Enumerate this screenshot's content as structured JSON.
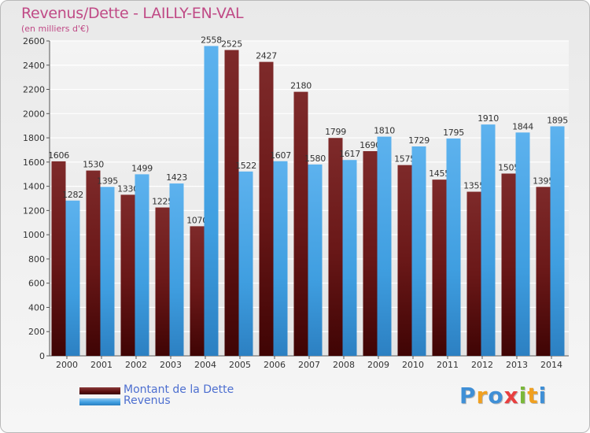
{
  "title": "Revenus/Dette - LAILLY-EN-VAL",
  "subtitle": "(en milliers d'€)",
  "logo": {
    "text": "Proxiti",
    "letters": [
      "P",
      "r",
      "o",
      "x",
      "i",
      "t",
      "i"
    ],
    "colors": [
      "#3f8fd6",
      "#f0a020",
      "#3f8fd6",
      "#e83f3f",
      "#7ab83a",
      "#f0a020",
      "#3f8fd6"
    ]
  },
  "colors": {
    "dette": "#7a1f1f",
    "revenus": "#3f9ee0",
    "title": "#c04a86",
    "legend_text": "#4d6fd0"
  },
  "legend": [
    {
      "label": "Montant de la Dette",
      "color": "#6b1515"
    },
    {
      "label": "Revenus",
      "color": "#3f9ee0"
    }
  ],
  "chart_data": {
    "type": "bar",
    "title": "Revenus/Dette - LAILLY-EN-VAL",
    "subtitle": "(en milliers d'€)",
    "xlabel": "",
    "ylabel": "",
    "ylim": [
      0,
      2600
    ],
    "yticks": [
      0,
      200,
      400,
      600,
      800,
      1000,
      1200,
      1400,
      1600,
      1800,
      2000,
      2200,
      2400,
      2600
    ],
    "grid": true,
    "legend_position": "bottom-left",
    "categories": [
      "2000",
      "2001",
      "2002",
      "2003",
      "2004",
      "2005",
      "2006",
      "2007",
      "2008",
      "2009",
      "2010",
      "2011",
      "2012",
      "2013",
      "2014"
    ],
    "series": [
      {
        "name": "Montant de la Dette",
        "values": [
          1606,
          1530,
          1330,
          1225,
          1070,
          2525,
          2427,
          2180,
          1799,
          1690,
          1575,
          1455,
          1355,
          1505,
          1395
        ],
        "labels": [
          "1606",
          "1530",
          "1330",
          "1225",
          "1070",
          "2525",
          "2427",
          "2180",
          "1799",
          "1690",
          "1575",
          "1455",
          "1355",
          "1505",
          "1395"
        ]
      },
      {
        "name": "Revenus",
        "values": [
          1282,
          1395,
          1499,
          1423,
          2558,
          1522,
          1607,
          1580,
          1617,
          1810,
          1729,
          1795,
          1910,
          1844,
          1895
        ],
        "labels": [
          "1282",
          "1395",
          "1499",
          "1423",
          "2558",
          "1522",
          "1607",
          "1580",
          "1617",
          "1810",
          "1729",
          "1795",
          "1910",
          "1844",
          "1895"
        ]
      }
    ]
  }
}
